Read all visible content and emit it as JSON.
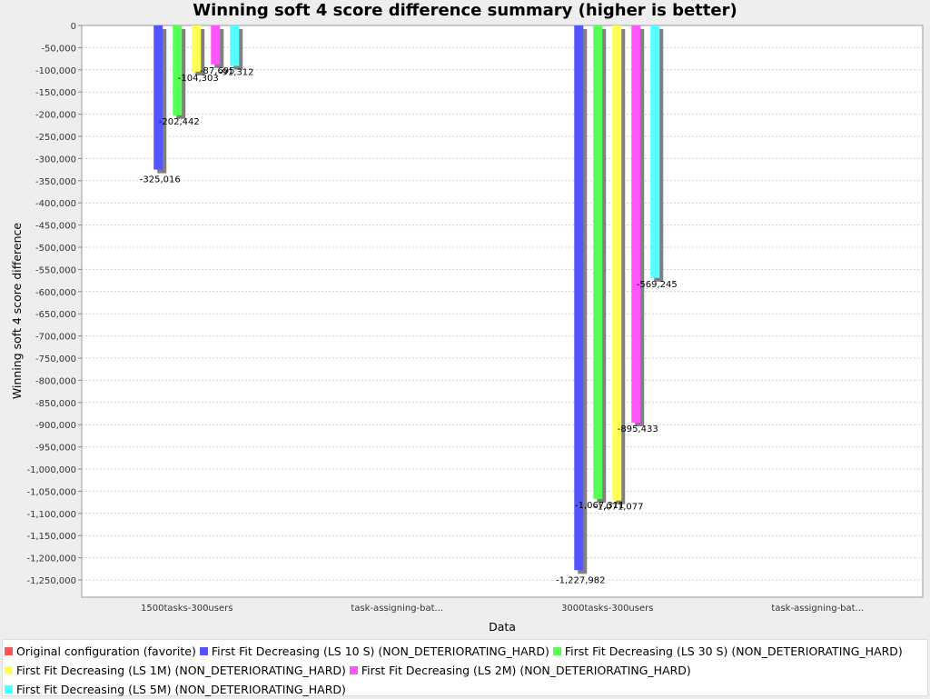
{
  "chart_data": {
    "type": "bar",
    "title": "Winning soft 4 score difference summary (higher is better)",
    "xlabel": "Data",
    "ylabel": "Winning soft 4 score difference",
    "ylim": [
      -1290000,
      0
    ],
    "ytick_step": 50000,
    "grid": true,
    "legend_position": "bottom",
    "categories": [
      "1500tasks-300users",
      "task-assigning-bat...",
      "3000tasks-300users",
      "task-assigning-bat..."
    ],
    "series": [
      {
        "name": "Original configuration (favorite)",
        "color": "#ff5555",
        "values": [
          null,
          null,
          null,
          null
        ],
        "labels": [
          null,
          null,
          null,
          null
        ]
      },
      {
        "name": "First Fit Decreasing (LS 10 S) (NON_DETERIORATING_HARD)",
        "color": "#5555ff",
        "values": [
          -325016,
          null,
          -1227982,
          null
        ],
        "labels": [
          "-325,016",
          null,
          "-1,227,982",
          null
        ]
      },
      {
        "name": "First Fit Decreasing (LS 30 S) (NON_DETERIORATING_HARD)",
        "color": "#55ff55",
        "values": [
          -202442,
          null,
          -1067311,
          null
        ],
        "labels": [
          "-202,442",
          null,
          "-1,067,311",
          null
        ]
      },
      {
        "name": "First Fit Decreasing (LS 1M) (NON_DETERIORATING_HARD)",
        "color": "#ffff55",
        "values": [
          -104303,
          null,
          -1071077,
          null
        ],
        "labels": [
          "-104,303",
          null,
          "-1,071,077",
          null
        ]
      },
      {
        "name": "First Fit Decreasing (LS 2M) (NON_DETERIORATING_HARD)",
        "color": "#ff55ff",
        "values": [
          -87695,
          null,
          -895433,
          null
        ],
        "labels": [
          "-87,695",
          null,
          "-895,433",
          null
        ]
      },
      {
        "name": "First Fit Decreasing (LS 5M) (NON_DETERIORATING_HARD)",
        "color": "#55ffff",
        "values": [
          -91312,
          null,
          -569245,
          null
        ],
        "labels": [
          "-91,312",
          null,
          "-569,245",
          null
        ]
      }
    ]
  }
}
